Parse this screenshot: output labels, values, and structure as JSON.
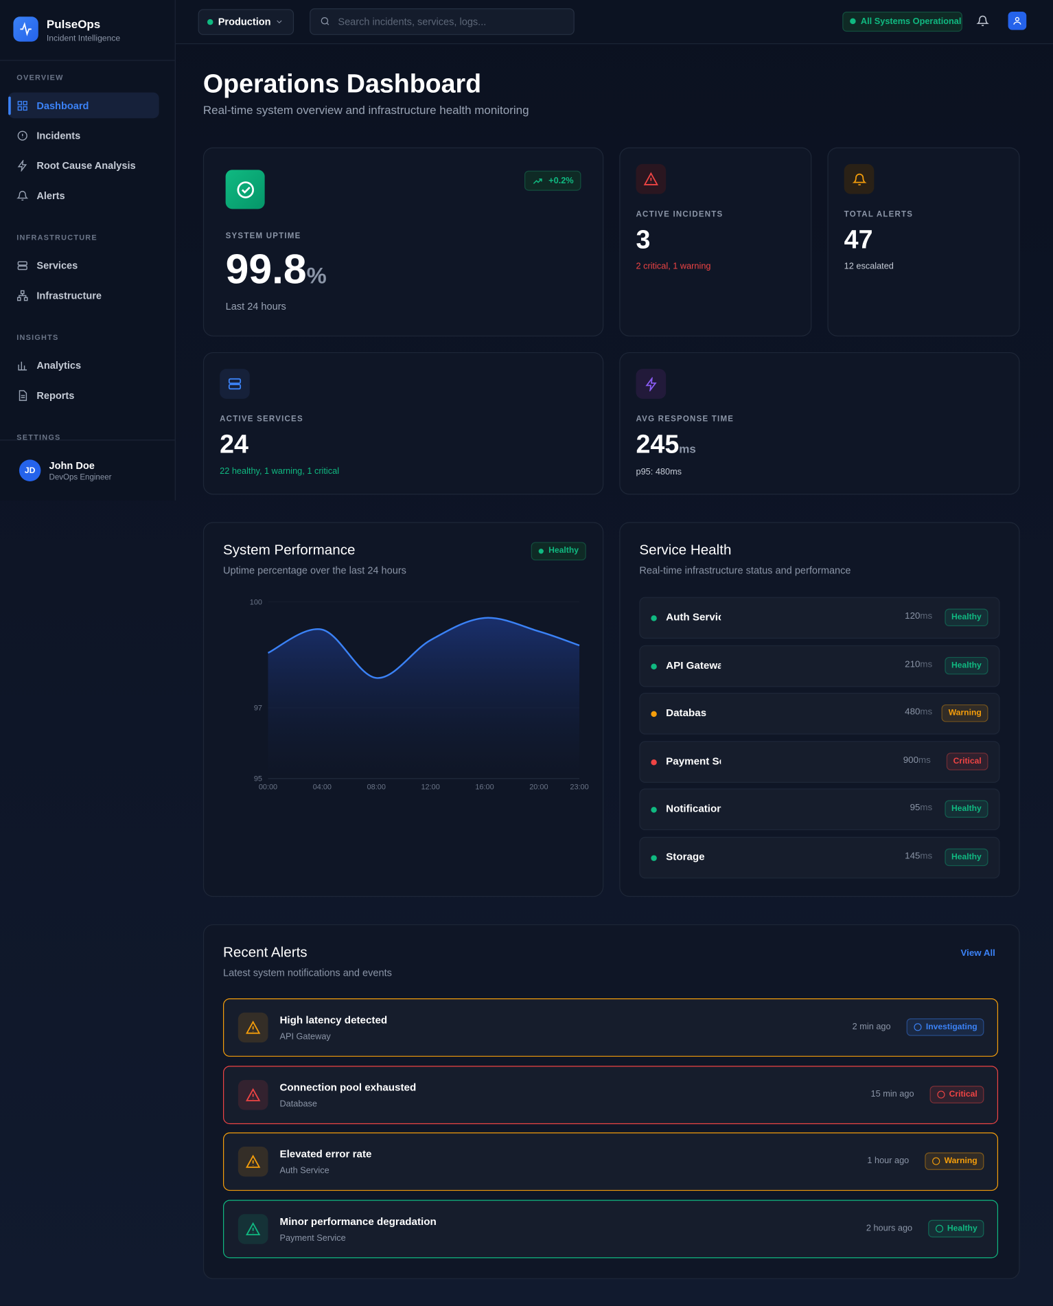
{
  "sidebar": {
    "brand": {
      "name": "PulseOps",
      "tagline": "Incident Intelligence"
    },
    "sections": [
      {
        "title": "OVERVIEW",
        "items": [
          "Dashboard",
          "Incidents",
          "Root Cause Analysis",
          "Alerts"
        ]
      },
      {
        "title": "INFRASTRUCTURE",
        "items": [
          "Services",
          "Infrastructure"
        ]
      },
      {
        "title": "INSIGHTS",
        "items": [
          "Analytics",
          "Reports"
        ]
      },
      {
        "title": "SETTINGS",
        "items": []
      }
    ],
    "user": {
      "initials": "JD",
      "name": "John Doe",
      "role": "DevOps Engineer"
    }
  },
  "topbar": {
    "environment": "Production",
    "search_placeholder": "Search incidents, services, logs...",
    "status": "All Systems Operational"
  },
  "header": {
    "title": "Operations Dashboard",
    "subtitle": "Real-time system overview and infrastructure health monitoring"
  },
  "stats": {
    "uptime": {
      "label": "SYSTEM UPTIME",
      "value": 99.8,
      "unit": "%",
      "note": "Last 24 hours",
      "trend": "+0.2%"
    },
    "incidents": {
      "label": "ACTIVE INCIDENTS",
      "value": 3,
      "note": "2 critical, 1 warning"
    },
    "alerts": {
      "label": "TOTAL ALERTS",
      "value": 47,
      "note": "12 escalated"
    },
    "services": {
      "label": "ACTIVE SERVICES",
      "value": 24,
      "note": "22 healthy, 1 warning, 1 critical"
    },
    "response": {
      "label": "AVG RESPONSE TIME",
      "value": 245,
      "unit": "ms",
      "note": "p95: 480ms"
    }
  },
  "performance": {
    "title": "System Performance",
    "subtitle": "Uptime percentage over the last 24 hours",
    "badge": "Healthy"
  },
  "chart_data": {
    "type": "area",
    "x": [
      "00:00",
      "04:00",
      "08:00",
      "12:00",
      "16:00",
      "20:00",
      "23:00"
    ],
    "series": [
      {
        "name": "Uptime",
        "color": "#3b82f6",
        "values": [
          98.56,
          99.22,
          97.85,
          98.92,
          99.55,
          99.17,
          98.77
        ]
      }
    ],
    "ylim": [
      95,
      100
    ],
    "yticks": [
      95,
      97,
      100
    ]
  },
  "service_health": {
    "title": "Service Health",
    "subtitle": "Real-time infrastructure status and performance",
    "services": [
      {
        "name": "Auth Service",
        "latency": 120,
        "unit": "ms",
        "status": "Healthy",
        "color": "#10b981"
      },
      {
        "name": "API Gateway",
        "latency": 210,
        "unit": "ms",
        "status": "Healthy",
        "color": "#10b981"
      },
      {
        "name": "Database",
        "latency": 480,
        "unit": "ms",
        "status": "Warning",
        "color": "#f59e0b"
      },
      {
        "name": "Payment Service",
        "latency": 900,
        "unit": "ms",
        "status": "Critical",
        "color": "#ef4444"
      },
      {
        "name": "Notification Service",
        "latency": 95,
        "unit": "ms",
        "status": "Healthy",
        "color": "#10b981"
      },
      {
        "name": "Storage",
        "latency": 145,
        "unit": "ms",
        "status": "Healthy",
        "color": "#10b981"
      }
    ]
  },
  "recent_alerts": {
    "title": "Recent Alerts",
    "subtitle": "Latest system notifications and events",
    "view_all": "View All",
    "alerts": [
      {
        "title": "High latency detected",
        "source": "API Gateway",
        "time": "2 min ago",
        "status": "Investigating",
        "color": "#f59e0b",
        "status_color": "#3b82f6"
      },
      {
        "title": "Connection pool exhausted",
        "source": "Database",
        "time": "15 min ago",
        "status": "Critical",
        "color": "#ef4444",
        "status_color": "#ef4444"
      },
      {
        "title": "Elevated error rate",
        "source": "Auth Service",
        "time": "1 hour ago",
        "status": "Warning",
        "color": "#f59e0b",
        "status_color": "#f59e0b"
      },
      {
        "title": "Minor performance degradation",
        "source": "Payment Service",
        "time": "2 hours ago",
        "status": "Healthy",
        "color": "#10b981",
        "status_color": "#10b981"
      }
    ]
  }
}
